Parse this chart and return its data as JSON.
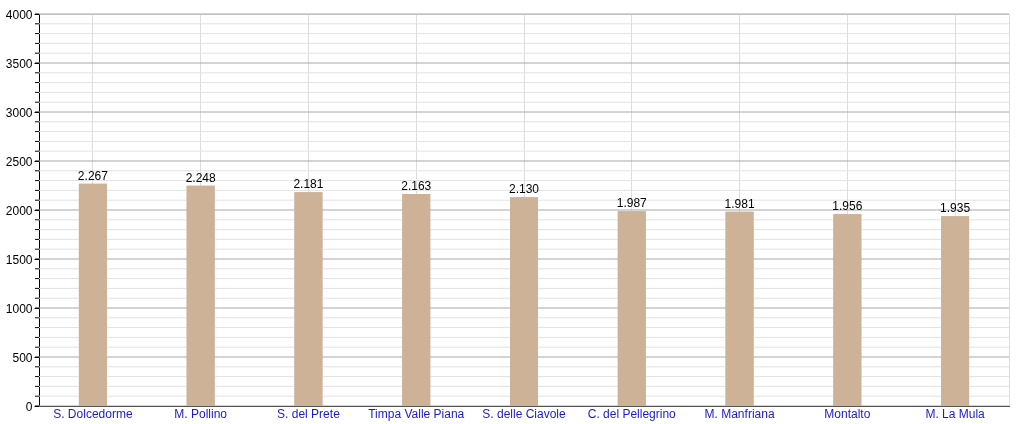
{
  "chart_data": {
    "type": "bar",
    "categories": [
      "S. Dolcedorme",
      "M. Pollino",
      "S. del Prete",
      "Timpa Valle Piana",
      "S. delle Ciavole",
      "C. del Pellegrino",
      "M. Manfriana",
      "Montalto",
      "M. La Mula"
    ],
    "values": [
      2267,
      2248,
      2181,
      2163,
      2130,
      1987,
      1981,
      1956,
      1935
    ],
    "value_labels": [
      "2.267",
      "2.248",
      "2.181",
      "2.163",
      "2.130",
      "1.987",
      "1.981",
      "1.956",
      "1.935"
    ],
    "color": "#cdb298",
    "ylim": [
      0,
      4000
    ],
    "yticks": [
      0,
      {
        "value": 100,
        "label": null
      },
      {
        "value": 200,
        "label": null
      },
      {
        "value": 300,
        "label": null
      },
      {
        "value": 400,
        "label": null
      },
      500,
      {
        "value": 600,
        "label": null
      },
      {
        "value": 700,
        "label": null
      },
      {
        "value": 800,
        "label": null
      },
      {
        "value": 900,
        "label": null
      },
      1000,
      {
        "value": 1100,
        "label": null
      },
      {
        "value": 1200,
        "label": null
      },
      {
        "value": 1300,
        "label": null
      },
      {
        "value": 1400,
        "label": null
      },
      1500,
      {
        "value": 1600,
        "label": null
      },
      {
        "value": 1700,
        "label": null
      },
      {
        "value": 1800,
        "label": null
      },
      {
        "value": 1900,
        "label": null
      },
      2000,
      {
        "value": 2100,
        "label": null
      },
      {
        "value": 2200,
        "label": null
      },
      {
        "value": 2300,
        "label": null
      },
      {
        "value": 2400,
        "label": null
      },
      2500,
      {
        "value": 2600,
        "label": null
      },
      {
        "value": 2700,
        "label": null
      },
      {
        "value": 2800,
        "label": null
      },
      {
        "value": 2900,
        "label": null
      },
      3000,
      {
        "value": 3100,
        "label": null
      },
      {
        "value": 3200,
        "label": null
      },
      {
        "value": 3300,
        "label": null
      },
      {
        "value": 3400,
        "label": null
      },
      3500,
      {
        "value": 3600,
        "label": null
      },
      {
        "value": 3700,
        "label": null
      },
      {
        "value": 3800,
        "label": null
      },
      {
        "value": 3900,
        "label": null
      },
      4000
    ],
    "grid": true
  }
}
